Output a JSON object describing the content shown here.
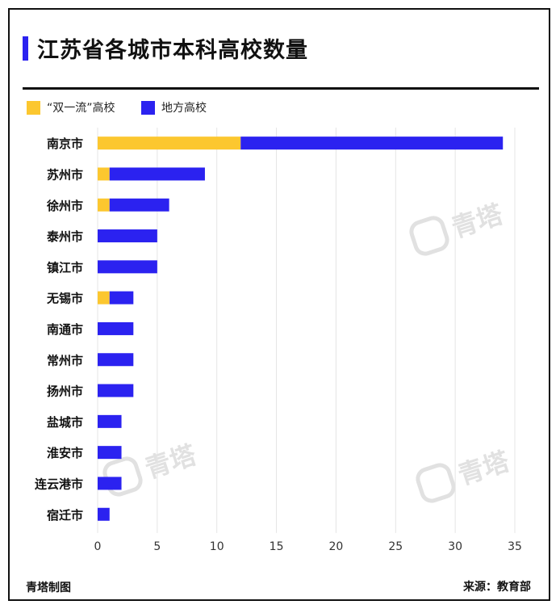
{
  "colors": {
    "double_first_class": "#fcc72f",
    "local": "#2b22f0",
    "grid": "#e5e5e5",
    "text": "#111111",
    "watermark": "#dcdcdc"
  },
  "watermark": "青塔",
  "footer": {
    "maker": "青塔制图",
    "source": "来源：教育部"
  },
  "chart_data": {
    "type": "bar",
    "orientation": "horizontal",
    "stacked": true,
    "title": "江苏省各城市本科高校数量",
    "categories": [
      "南京市",
      "苏州市",
      "徐州市",
      "泰州市",
      "镇江市",
      "无锡市",
      "南通市",
      "常州市",
      "扬州市",
      "盐城市",
      "淮安市",
      "连云港市",
      "宿迁市"
    ],
    "series": [
      {
        "name": "“双一流”高校",
        "color": "#fcc72f",
        "values": [
          12,
          1,
          1,
          0,
          0,
          1,
          0,
          0,
          0,
          0,
          0,
          0,
          0
        ]
      },
      {
        "name": "地方高校",
        "color": "#2b22f0",
        "values": [
          22,
          8,
          5,
          5,
          5,
          2,
          3,
          3,
          3,
          2,
          2,
          2,
          1
        ]
      }
    ],
    "xlim": [
      0,
      35
    ],
    "xticks": [
      0,
      5,
      10,
      15,
      20,
      25,
      30,
      35
    ],
    "grid": true,
    "legend": "top-left"
  }
}
